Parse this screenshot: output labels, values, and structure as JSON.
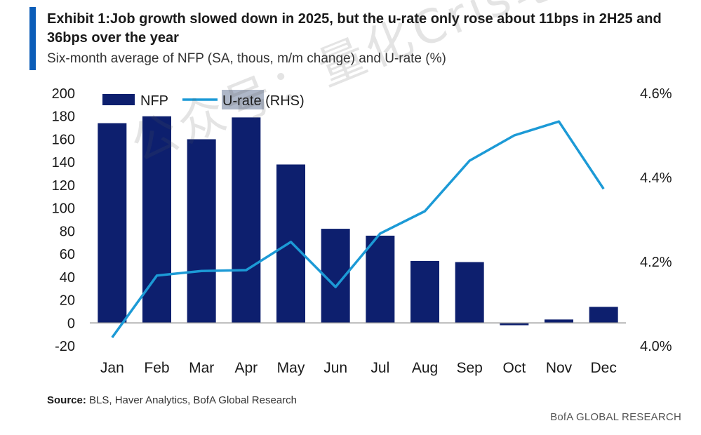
{
  "header": {
    "title": "Exhibit 1:Job growth slowed down in 2025, but the u-rate only rose about 11bps in 2H25 and 36bps over the year",
    "subtitle": "Six-month average of NFP (SA, thous, m/m change) and U-rate (%)"
  },
  "footer": {
    "source_label": "Source:",
    "source_text": " BLS, Haver Analytics, BofA Global Research",
    "brand": "BofA GLOBAL RESEARCH"
  },
  "watermark": "公众号：量化Cris笔记",
  "colors": {
    "accent": "#0b5db8",
    "bar": "#0d1f6e",
    "line": "#1c9ad6",
    "axis": "#999999"
  },
  "chart_data": {
    "type": "bar",
    "categories": [
      "Jan",
      "Feb",
      "Mar",
      "Apr",
      "May",
      "Jun",
      "Jul",
      "Aug",
      "Sep",
      "Oct",
      "Nov",
      "Dec"
    ],
    "series": [
      {
        "name": "NFP",
        "type": "bar",
        "axis": "left",
        "values": [
          174,
          180,
          160,
          179,
          138,
          82,
          76,
          54,
          53,
          -2,
          3,
          14
        ]
      },
      {
        "name": "U-rate (RHS)",
        "type": "line",
        "axis": "right",
        "values": [
          4.02,
          4.167,
          4.178,
          4.18,
          4.247,
          4.14,
          4.267,
          4.32,
          4.44,
          4.5,
          4.533,
          4.373
        ]
      }
    ],
    "left_axis": {
      "ylim": [
        -20,
        200
      ],
      "ticks": [
        "200",
        "180",
        "160",
        "140",
        "120",
        "100",
        "80",
        "60",
        "40",
        "20",
        "0",
        "-20"
      ]
    },
    "right_axis": {
      "ylim": [
        4.0,
        4.6
      ],
      "ticks": [
        "4.6%",
        "4.4%",
        "4.2%",
        "4.0%"
      ]
    },
    "legend": {
      "position": "top-left",
      "entries": [
        "NFP",
        "U-rate (RHS)"
      ]
    },
    "grid": false
  }
}
